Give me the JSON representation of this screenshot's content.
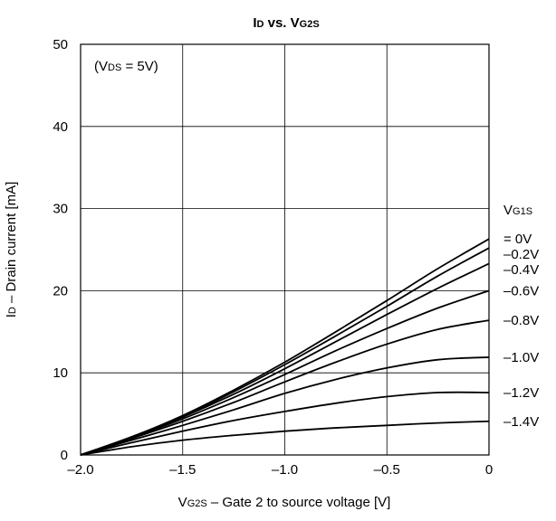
{
  "chart_data": {
    "type": "line",
    "title": "ID vs. VG2S",
    "title_parts": {
      "t1": "I",
      "t1sub": "D",
      "t2": " vs. V",
      "t2sub": "G2S"
    },
    "xlabel": "VG2S – Gate 2 to source voltage [V]",
    "xlabel_parts": {
      "v": "V",
      "vsub": "G2S",
      "rest": " – Gate 2 to source voltage [V]"
    },
    "ylabel": "ID – Drain current [mA]",
    "ylabel_parts": {
      "i": "I",
      "isub": "D",
      "rest": " – Drain current [mA]"
    },
    "xlim": [
      -2.0,
      0
    ],
    "ylim": [
      0,
      50
    ],
    "xticks": [
      -2.0,
      -1.5,
      -1.0,
      -0.5,
      0
    ],
    "xtick_labels": [
      "–2.0",
      "–1.5",
      "–1.0",
      "–0.5",
      "0"
    ],
    "yticks": [
      0,
      10,
      20,
      30,
      40,
      50
    ],
    "ytick_labels": [
      "0",
      "10",
      "20",
      "30",
      "40",
      "50"
    ],
    "grid": true,
    "condition": {
      "open": "(V",
      "sub": "DS",
      "rest": " = 5V)",
      "full": "(VDS = 5V)"
    },
    "legend_title": {
      "v": "V",
      "sub": "G1S",
      "full": "VG1S"
    },
    "x": [
      -2.0,
      -1.75,
      -1.5,
      -1.25,
      -1.0,
      -0.75,
      -0.5,
      -0.25,
      0
    ],
    "series": [
      {
        "name": "= 0V",
        "values": [
          0,
          2.2,
          4.8,
          7.9,
          11.3,
          15.0,
          18.8,
          22.7,
          26.3
        ]
      },
      {
        "name": "–0.2V",
        "values": [
          0,
          2.2,
          4.7,
          7.7,
          11.0,
          14.5,
          18.1,
          21.8,
          25.2
        ]
      },
      {
        "name": "–0.4V",
        "values": [
          0,
          2.1,
          4.6,
          7.4,
          10.5,
          13.8,
          17.1,
          20.3,
          23.3
        ]
      },
      {
        "name": "–0.6V",
        "values": [
          0,
          2.1,
          4.4,
          7.0,
          9.8,
          12.7,
          15.4,
          17.9,
          20.0
        ]
      },
      {
        "name": "–0.8V",
        "values": [
          0,
          2.0,
          4.1,
          6.4,
          8.9,
          11.3,
          13.5,
          15.3,
          16.4
        ]
      },
      {
        "name": "–1.0V",
        "values": [
          0,
          1.8,
          3.6,
          5.5,
          7.5,
          9.2,
          10.6,
          11.6,
          11.9
        ]
      },
      {
        "name": "–1.2V",
        "values": [
          0,
          1.5,
          2.9,
          4.2,
          5.3,
          6.3,
          7.1,
          7.6,
          7.6
        ]
      },
      {
        "name": "–1.4V",
        "values": [
          0,
          1.0,
          1.8,
          2.4,
          2.9,
          3.3,
          3.6,
          3.9,
          4.1
        ]
      }
    ]
  }
}
